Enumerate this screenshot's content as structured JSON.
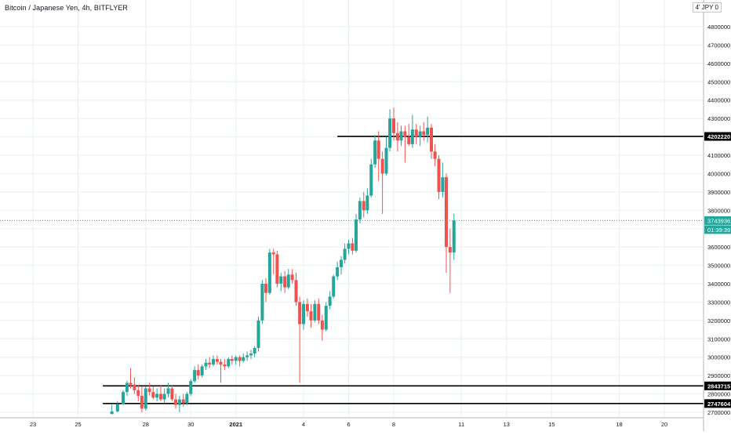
{
  "header": {
    "title": "Bitcoin / Japanese Yen, 4h, BITFLYER",
    "currency": "4' JPY 0"
  },
  "colors": {
    "up": "#26a69a",
    "down": "#ef5350",
    "grid": "#e6f0f0",
    "axis_text": "#131722",
    "hline": "#000000",
    "last_price_line": "#26a69a"
  },
  "chart_data": {
    "type": "candlestick",
    "symbol": "Bitcoin / Japanese Yen",
    "interval": "4h",
    "exchange": "BITFLYER",
    "ylim": [
      2690000,
      4920000
    ],
    "yticks": [
      2700000,
      2800000,
      2900000,
      3000000,
      3100000,
      3200000,
      3300000,
      3400000,
      3500000,
      3600000,
      3700000,
      3800000,
      3900000,
      4000000,
      4100000,
      4200000,
      4300000,
      4400000,
      4500000,
      4600000,
      4700000,
      4800000
    ],
    "x_ticks": [
      {
        "label": "23",
        "day": 23
      },
      {
        "label": "25",
        "day": 25
      },
      {
        "label": "28",
        "day": 28
      },
      {
        "label": "30",
        "day": 30
      },
      {
        "label": "2021",
        "day": 32
      },
      {
        "label": "4",
        "day": 35
      },
      {
        "label": "6",
        "day": 37
      },
      {
        "label": "8",
        "day": 39
      },
      {
        "label": "11",
        "day": 42
      },
      {
        "label": "13",
        "day": 44
      },
      {
        "label": "15",
        "day": 46
      },
      {
        "label": "18",
        "day": 49
      },
      {
        "label": "20",
        "day": 51
      }
    ],
    "horizontal_lines": [
      {
        "value": 4202220,
        "label": "4202220",
        "from_day": 36.5
      },
      {
        "value": 2843715,
        "label": "2843715",
        "from_day": 26.1
      },
      {
        "value": 2747604,
        "label": "2747604",
        "from_day": 26.1
      }
    ],
    "last_price": {
      "value": 3743936,
      "label": "3743936",
      "countdown": "01:39:39"
    },
    "candles": [
      [
        26.5,
        2690000,
        2740000,
        2690000,
        2705000
      ],
      [
        26.75,
        2705000,
        2760000,
        2700000,
        2745000
      ],
      [
        27.0,
        2745000,
        2820000,
        2740000,
        2810000
      ],
      [
        27.17,
        2810000,
        2870000,
        2790000,
        2860000
      ],
      [
        27.33,
        2860000,
        2940000,
        2830000,
        2850000
      ],
      [
        27.5,
        2850000,
        2890000,
        2800000,
        2820000
      ],
      [
        27.67,
        2820000,
        2850000,
        2760000,
        2790000
      ],
      [
        27.83,
        2790000,
        2840000,
        2700000,
        2720000
      ],
      [
        28.0,
        2720000,
        2840000,
        2710000,
        2830000
      ],
      [
        28.17,
        2830000,
        2860000,
        2790000,
        2810000
      ],
      [
        28.33,
        2810000,
        2840000,
        2770000,
        2780000
      ],
      [
        28.5,
        2780000,
        2830000,
        2760000,
        2800000
      ],
      [
        28.67,
        2800000,
        2850000,
        2760000,
        2770000
      ],
      [
        28.83,
        2770000,
        2830000,
        2750000,
        2800000
      ],
      [
        29.0,
        2800000,
        2860000,
        2780000,
        2830000
      ],
      [
        29.17,
        2830000,
        2850000,
        2760000,
        2770000
      ],
      [
        29.33,
        2770000,
        2800000,
        2720000,
        2740000
      ],
      [
        29.5,
        2740000,
        2790000,
        2700000,
        2770000
      ],
      [
        29.67,
        2770000,
        2800000,
        2730000,
        2750000
      ],
      [
        29.83,
        2750000,
        2810000,
        2740000,
        2800000
      ],
      [
        30.0,
        2800000,
        2880000,
        2790000,
        2870000
      ],
      [
        30.17,
        2870000,
        2950000,
        2860000,
        2930000
      ],
      [
        30.33,
        2930000,
        2960000,
        2880000,
        2900000
      ],
      [
        30.5,
        2900000,
        2960000,
        2890000,
        2950000
      ],
      [
        30.67,
        2950000,
        2990000,
        2930000,
        2970000
      ],
      [
        30.83,
        2970000,
        3000000,
        2940000,
        2960000
      ],
      [
        31.0,
        2960000,
        3010000,
        2950000,
        2990000
      ],
      [
        31.17,
        2990000,
        3010000,
        2960000,
        2975000
      ],
      [
        31.33,
        2975000,
        2990000,
        2860000,
        2960000
      ],
      [
        31.5,
        2960000,
        2990000,
        2930000,
        2950000
      ],
      [
        31.67,
        2950000,
        3000000,
        2940000,
        2990000
      ],
      [
        31.83,
        2990000,
        3010000,
        2960000,
        2980000
      ],
      [
        32.0,
        2980000,
        3010000,
        2960000,
        3000000
      ],
      [
        32.17,
        3000000,
        3010000,
        2950000,
        2980000
      ],
      [
        32.33,
        2980000,
        3020000,
        2970000,
        3000000
      ],
      [
        32.5,
        3000000,
        3030000,
        2980000,
        3010000
      ],
      [
        32.67,
        3010000,
        3040000,
        2990000,
        3020000
      ],
      [
        32.83,
        3020000,
        3060000,
        3000000,
        3050000
      ],
      [
        33.0,
        3050000,
        3220000,
        3030000,
        3200000
      ],
      [
        33.17,
        3200000,
        3420000,
        3180000,
        3400000
      ],
      [
        33.33,
        3400000,
        3430000,
        3300000,
        3350000
      ],
      [
        33.5,
        3350000,
        3590000,
        3340000,
        3570000
      ],
      [
        33.67,
        3570000,
        3590000,
        3450000,
        3560000
      ],
      [
        33.83,
        3560000,
        3580000,
        3380000,
        3400000
      ],
      [
        34.0,
        3400000,
        3460000,
        3360000,
        3440000
      ],
      [
        34.17,
        3440000,
        3470000,
        3350000,
        3380000
      ],
      [
        34.33,
        3380000,
        3480000,
        3370000,
        3450000
      ],
      [
        34.5,
        3450000,
        3480000,
        3400000,
        3420000
      ],
      [
        34.67,
        3420000,
        3460000,
        3280000,
        3300000
      ],
      [
        34.83,
        3300000,
        3330000,
        2860000,
        3180000
      ],
      [
        35.0,
        3180000,
        3310000,
        3150000,
        3290000
      ],
      [
        35.17,
        3290000,
        3320000,
        3220000,
        3250000
      ],
      [
        35.33,
        3250000,
        3290000,
        3160000,
        3200000
      ],
      [
        35.5,
        3200000,
        3310000,
        3190000,
        3290000
      ],
      [
        35.67,
        3290000,
        3320000,
        3180000,
        3200000
      ],
      [
        35.83,
        3200000,
        3230000,
        3090000,
        3150000
      ],
      [
        36.0,
        3150000,
        3300000,
        3140000,
        3280000
      ],
      [
        36.17,
        3280000,
        3360000,
        3260000,
        3330000
      ],
      [
        36.33,
        3330000,
        3450000,
        3320000,
        3440000
      ],
      [
        36.5,
        3440000,
        3520000,
        3420000,
        3490000
      ],
      [
        36.67,
        3490000,
        3550000,
        3450000,
        3530000
      ],
      [
        36.83,
        3530000,
        3620000,
        3510000,
        3590000
      ],
      [
        37.0,
        3590000,
        3640000,
        3560000,
        3620000
      ],
      [
        37.17,
        3620000,
        3650000,
        3560000,
        3580000
      ],
      [
        37.33,
        3580000,
        3780000,
        3570000,
        3750000
      ],
      [
        37.5,
        3750000,
        3870000,
        3730000,
        3850000
      ],
      [
        37.67,
        3850000,
        3900000,
        3760000,
        3800000
      ],
      [
        37.83,
        3800000,
        3920000,
        3780000,
        3880000
      ],
      [
        38.0,
        3880000,
        4080000,
        3870000,
        4050000
      ],
      [
        38.17,
        4050000,
        4210000,
        4030000,
        4180000
      ],
      [
        38.33,
        4180000,
        4230000,
        3960000,
        4080000
      ],
      [
        38.5,
        4080000,
        4120000,
        3780000,
        4000000
      ],
      [
        38.67,
        4000000,
        4200000,
        3990000,
        4140000
      ],
      [
        38.83,
        4140000,
        4350000,
        4120000,
        4300000
      ],
      [
        39.0,
        4300000,
        4360000,
        4180000,
        4220000
      ],
      [
        39.17,
        4220000,
        4280000,
        4120000,
        4180000
      ],
      [
        39.33,
        4180000,
        4260000,
        4150000,
        4230000
      ],
      [
        39.5,
        4230000,
        4260000,
        4060000,
        4200000
      ],
      [
        39.67,
        4200000,
        4270000,
        4150000,
        4160000
      ],
      [
        39.83,
        4160000,
        4320000,
        4140000,
        4240000
      ],
      [
        40.0,
        4240000,
        4270000,
        4160000,
        4200000
      ],
      [
        40.17,
        4200000,
        4260000,
        4150000,
        4230000
      ],
      [
        40.33,
        4230000,
        4280000,
        4180000,
        4210000
      ],
      [
        40.5,
        4210000,
        4310000,
        4170000,
        4250000
      ],
      [
        40.67,
        4250000,
        4270000,
        4080000,
        4120000
      ],
      [
        40.83,
        4120000,
        4160000,
        4040000,
        4080000
      ],
      [
        41.0,
        4080000,
        4100000,
        3860000,
        3900000
      ],
      [
        41.17,
        3900000,
        4060000,
        3870000,
        3980000
      ],
      [
        41.33,
        3980000,
        4000000,
        3460000,
        3600000
      ],
      [
        41.5,
        3600000,
        3700000,
        3350000,
        3570000
      ],
      [
        41.67,
        3570000,
        3780000,
        3530000,
        3744000
      ]
    ]
  }
}
